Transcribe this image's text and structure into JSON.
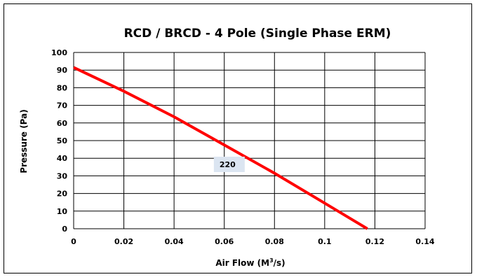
{
  "chart_data": {
    "type": "line",
    "title": "RCD / BRCD - 4 Pole (Single Phase ERM)",
    "xlabel_main": "Air Flow (M",
    "xlabel_sup": "3",
    "xlabel_tail": "/s)",
    "ylabel": "Pressure (Pa)",
    "xlim": [
      0,
      0.14
    ],
    "ylim": [
      0,
      100
    ],
    "x_ticks": [
      0,
      0.02,
      0.04,
      0.06,
      0.08,
      0.1,
      0.12,
      0.14
    ],
    "x_tick_labels": [
      "0",
      "0.02",
      "0.04",
      "0.06",
      "0.08",
      "0.1",
      "0.12",
      "0.14"
    ],
    "y_ticks": [
      0,
      10,
      20,
      30,
      40,
      50,
      60,
      70,
      80,
      90,
      100
    ],
    "y_tick_labels": [
      "0",
      "10",
      "20",
      "30",
      "40",
      "50",
      "60",
      "70",
      "80",
      "90",
      "100"
    ],
    "grid": true,
    "series": [
      {
        "name": "220",
        "color": "#ff0000",
        "x": [
          0,
          0.02,
          0.04,
          0.06,
          0.08,
          0.1,
          0.117
        ],
        "y": [
          91.5,
          78,
          63.5,
          47.5,
          31.5,
          14.5,
          0
        ]
      }
    ],
    "annotations": [
      {
        "text": "220",
        "x": 0.062,
        "y": 36.5,
        "background": "#dbe5f1"
      }
    ]
  }
}
